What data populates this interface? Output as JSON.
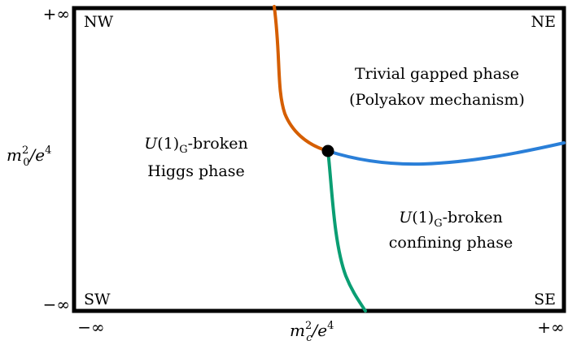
{
  "axes": {
    "y_top": "+∞",
    "y_bottom": "−∞",
    "x_left": "−∞",
    "x_right": "+∞",
    "y_label": {
      "base": "m",
      "sup": "2",
      "sub": "0",
      "rest": "/e",
      "rest_sup": "4"
    },
    "x_label": {
      "base": "m",
      "sup": "2",
      "sub": "c",
      "rest": "/e",
      "rest_sup": "4"
    }
  },
  "corners": {
    "nw": "NW",
    "ne": "NE",
    "sw": "SW",
    "se": "SE"
  },
  "regions": {
    "higgs": {
      "line1_italic": "U",
      "line1_rest": "(1)",
      "line1_sub": "G",
      "line1_tail": "-broken",
      "line2": "Higgs phase"
    },
    "trivial": {
      "line1": "Trivial gapped phase",
      "line2": "(Polyakov mechanism)"
    },
    "confining": {
      "line1_italic": "U",
      "line1_rest": "(1)",
      "line1_sub": "G",
      "line1_tail": "-broken",
      "line2": "confining phase"
    }
  },
  "colors": {
    "frame": "#000000",
    "orange_curve": "#d55e00",
    "blue_curve": "#2a7fd8",
    "green_curve": "#0a9e73",
    "point": "#000000"
  }
}
